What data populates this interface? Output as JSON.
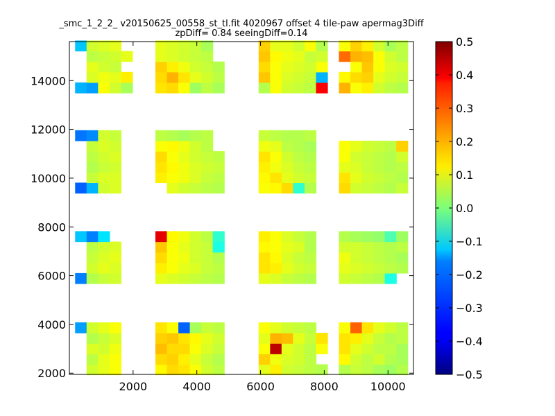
{
  "chart_data": {
    "type": "heatmap",
    "title_lines": [
      "_smc_1_2_2_ v20150625_00558_st_tl.fit 4020967 offset 4 tile-paw apermag3Diff",
      "zpDiff= 0.84 seeingDiff=0.14"
    ],
    "xlabel": "",
    "ylabel": "",
    "xlim": [
      0,
      10800
    ],
    "ylim": [
      1950,
      15600
    ],
    "xticks": [
      2000,
      4000,
      6000,
      8000,
      10000
    ],
    "yticks": [
      2000,
      4000,
      6000,
      8000,
      10000,
      12000,
      14000
    ],
    "colormap": "jet",
    "clim": [
      -0.5,
      0.5
    ],
    "colorbar_ticks": [
      "0.5",
      "0.4",
      "0.3",
      "0.2",
      "0.1",
      "0.0",
      "-0.1",
      "-0.2",
      "-0.3",
      "-0.4",
      "-0.5"
    ],
    "grid": false,
    "cell_size_data": [
      360,
      430
    ],
    "row_y": [
      2150,
      2580,
      3010,
      3440,
      3870,
      5890,
      6320,
      6750,
      7180,
      7610,
      9600,
      10030,
      10460,
      10890,
      11320,
      11750,
      13710,
      14140,
      14570,
      15000,
      15430
    ],
    "col_x": [
      360,
      720,
      1080,
      1440,
      1800,
      2880,
      3240,
      3600,
      3960,
      4320,
      4680,
      6120,
      6480,
      6840,
      7200,
      7560,
      7920,
      8640,
      9000,
      9360,
      9720,
      10080,
      10440
    ],
    "rows": [
      [
        null,
        0.08,
        0.1,
        0.12,
        null,
        0.13,
        0.16,
        0.15,
        0.12,
        0.08,
        0.06,
        0.1,
        0.14,
        0.08,
        0.07,
        0.06,
        0.05,
        0.05,
        0.07,
        0.06,
        0.04,
        0.03,
        0.05
      ],
      [
        null,
        0.06,
        0.1,
        0.12,
        null,
        0.16,
        0.17,
        0.14,
        0.1,
        0.07,
        0.05,
        0.17,
        0.11,
        0.09,
        0.08,
        0.06,
        null,
        0.13,
        0.08,
        0.06,
        0.08,
        0.05,
        0.04
      ],
      [
        null,
        0.09,
        0.08,
        0.11,
        null,
        0.19,
        0.16,
        0.16,
        0.12,
        0.09,
        0.07,
        0.12,
        0.44,
        0.1,
        0.08,
        0.06,
        0.12,
        0.15,
        0.1,
        0.08,
        0.06,
        0.06,
        0.04
      ],
      [
        null,
        0.05,
        0.07,
        0.09,
        null,
        0.17,
        0.18,
        0.15,
        0.13,
        0.1,
        0.08,
        0.1,
        0.2,
        0.19,
        0.1,
        0.07,
        0.15,
        0.15,
        0.14,
        0.1,
        0.07,
        0.05,
        0.06
      ],
      [
        -0.22,
        0.08,
        0.1,
        0.12,
        null,
        0.15,
        0.12,
        -0.28,
        0.04,
        0.07,
        0.06,
        0.12,
        0.1,
        0.08,
        0.07,
        0.06,
        null,
        0.12,
        0.28,
        0.15,
        0.1,
        0.08,
        0.06
      ],
      [
        -0.25,
        0.05,
        0.07,
        0.08,
        null,
        0.1,
        0.09,
        0.08,
        0.07,
        0.06,
        0.05,
        0.1,
        0.09,
        0.07,
        0.06,
        0.05,
        null,
        0.08,
        0.07,
        0.06,
        0.05,
        -0.1,
        null
      ],
      [
        null,
        0.08,
        0.1,
        0.09,
        null,
        0.14,
        0.12,
        0.1,
        0.09,
        0.07,
        0.06,
        0.15,
        0.14,
        0.1,
        0.08,
        0.07,
        null,
        0.1,
        0.09,
        0.08,
        0.07,
        0.06,
        0.05
      ],
      [
        null,
        0.07,
        0.09,
        0.1,
        null,
        0.16,
        0.12,
        0.11,
        0.08,
        0.07,
        0.05,
        0.15,
        0.13,
        0.09,
        0.07,
        0.06,
        null,
        0.11,
        0.08,
        0.07,
        0.06,
        0.05,
        0.04
      ],
      [
        null,
        0.06,
        0.08,
        0.09,
        null,
        0.18,
        0.12,
        0.1,
        0.08,
        0.07,
        -0.1,
        0.13,
        0.12,
        0.1,
        0.09,
        0.05,
        null,
        0.08,
        0.08,
        0.07,
        0.06,
        0.05,
        0.06
      ],
      [
        -0.18,
        -0.25,
        -0.15,
        null,
        null,
        0.4,
        0.13,
        0.11,
        0.08,
        0.06,
        -0.08,
        0.14,
        0.12,
        0.09,
        0.07,
        0.05,
        null,
        0.05,
        0.04,
        0.03,
        0.02,
        -0.05,
        0.03
      ],
      [
        -0.28,
        -0.2,
        0.08,
        0.09,
        null,
        null,
        0.1,
        0.08,
        0.07,
        0.06,
        0.05,
        0.12,
        0.13,
        0.16,
        -0.08,
        0.05,
        null,
        0.16,
        0.08,
        0.07,
        0.06,
        0.05,
        0.07
      ],
      [
        null,
        0.07,
        0.09,
        0.09,
        null,
        0.14,
        0.12,
        0.11,
        0.09,
        0.07,
        0.06,
        0.13,
        0.15,
        0.1,
        0.08,
        0.07,
        null,
        0.15,
        0.1,
        0.08,
        0.07,
        0.06,
        0.05
      ],
      [
        null,
        0.05,
        0.07,
        0.08,
        null,
        0.15,
        0.13,
        0.11,
        0.09,
        0.08,
        0.07,
        0.14,
        0.11,
        0.09,
        0.07,
        0.06,
        null,
        0.1,
        0.09,
        0.07,
        0.06,
        0.05,
        0.06
      ],
      [
        null,
        0.06,
        0.08,
        0.09,
        null,
        0.16,
        0.12,
        0.1,
        0.08,
        0.07,
        0.06,
        0.15,
        0.12,
        0.08,
        0.06,
        0.05,
        null,
        0.12,
        0.08,
        0.07,
        0.06,
        0.05,
        0.08
      ],
      [
        null,
        0.07,
        0.09,
        0.08,
        null,
        0.12,
        0.13,
        0.11,
        0.08,
        0.06,
        null,
        0.11,
        0.1,
        0.06,
        0.05,
        0.04,
        null,
        0.12,
        0.1,
        0.08,
        0.07,
        0.06,
        0.17
      ],
      [
        -0.26,
        -0.24,
        0.08,
        0.07,
        null,
        0.06,
        0.05,
        0.04,
        0.05,
        0.06,
        null,
        0.07,
        0.06,
        0.05,
        0.05,
        0.06,
        null,
        null,
        null,
        null,
        null,
        null,
        null
      ],
      [
        -0.2,
        -0.22,
        0.12,
        0.08,
        0.04,
        0.15,
        0.16,
        0.12,
        0.03,
        0.06,
        0.04,
        0.05,
        0.12,
        0.08,
        0.07,
        0.06,
        0.38,
        0.2,
        0.12,
        0.14,
        0.08,
        0.06,
        0.05
      ],
      [
        null,
        0.09,
        0.11,
        0.1,
        0.14,
        0.16,
        0.2,
        0.15,
        0.1,
        0.08,
        0.06,
        0.18,
        0.12,
        0.09,
        0.08,
        0.07,
        -0.2,
        0.13,
        0.16,
        0.17,
        0.1,
        0.08,
        0.07
      ],
      [
        null,
        0.1,
        0.08,
        0.07,
        null,
        0.17,
        0.14,
        0.11,
        0.08,
        0.07,
        0.05,
        0.16,
        0.12,
        0.1,
        0.09,
        0.08,
        0.12,
        null,
        0.12,
        0.18,
        0.12,
        0.09,
        0.08
      ],
      [
        null,
        0.06,
        0.07,
        0.08,
        0.1,
        0.1,
        0.09,
        0.08,
        0.07,
        0.06,
        null,
        0.18,
        0.13,
        0.11,
        0.1,
        0.07,
        0.08,
        0.27,
        0.2,
        0.19,
        0.12,
        0.08,
        0.06
      ],
      [
        -0.18,
        0.08,
        0.09,
        0.1,
        null,
        0.1,
        0.09,
        0.08,
        0.07,
        0.04,
        null,
        0.17,
        0.1,
        0.1,
        0.08,
        0.12,
        0.05,
        0.12,
        0.17,
        0.14,
        0.08,
        0.04,
        0.06
      ]
    ]
  }
}
